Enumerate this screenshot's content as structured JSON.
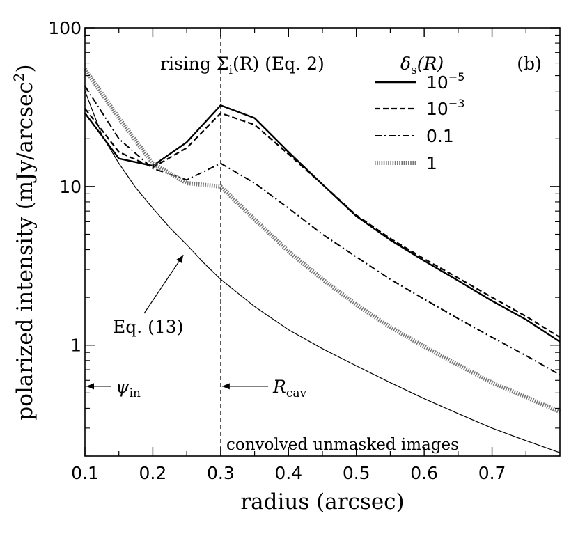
{
  "chart_data": {
    "type": "line",
    "panel_label": "(b)",
    "xlabel": "radius (arcsec)",
    "ylabel": "polarized intensity (mJy/arcsec",
    "ylabel_sup": "2",
    "ylabel_close": ")",
    "xlim": [
      0.1,
      0.8
    ],
    "ylim": [
      0.2,
      100
    ],
    "yscale": "log",
    "grid": false,
    "x_ticks": [
      0.1,
      0.2,
      0.3,
      0.4,
      0.5,
      0.6,
      0.7
    ],
    "x_tick_labels": [
      "0.1",
      "0.2",
      "0.3",
      "0.4",
      "0.5",
      "0.6",
      "0.7"
    ],
    "y_ticks": [
      1,
      10,
      100
    ],
    "y_tick_labels": [
      "1",
      "10",
      "100"
    ],
    "legend": {
      "placement": "top-right",
      "title_main": "δ",
      "title_sub": "s",
      "title_rest": "(R)"
    },
    "series": [
      {
        "name_base": "10",
        "name_exp": "−5",
        "style": "solid",
        "x": [
          0.1,
          0.15,
          0.2,
          0.25,
          0.3,
          0.35,
          0.4,
          0.45,
          0.5,
          0.55,
          0.6,
          0.65,
          0.7,
          0.75,
          0.8
        ],
        "y": [
          29,
          15,
          13.5,
          19,
          32.5,
          27,
          16.5,
          10.3,
          6.5,
          4.6,
          3.4,
          2.55,
          1.9,
          1.45,
          1.05
        ]
      },
      {
        "name_base": "10",
        "name_exp": "−3",
        "style": "dashed",
        "x": [
          0.1,
          0.15,
          0.2,
          0.25,
          0.3,
          0.35,
          0.4,
          0.45,
          0.5,
          0.55,
          0.6,
          0.65,
          0.7,
          0.75,
          0.8
        ],
        "y": [
          31,
          16.5,
          13.2,
          17.5,
          29,
          24.5,
          16,
          10.3,
          6.6,
          4.7,
          3.5,
          2.65,
          2.0,
          1.52,
          1.12
        ]
      },
      {
        "name_base": "0.1",
        "name_exp": "",
        "style": "dashdot",
        "x": [
          0.1,
          0.15,
          0.2,
          0.25,
          0.3,
          0.35,
          0.4,
          0.45,
          0.5,
          0.55,
          0.6,
          0.65,
          0.7,
          0.75,
          0.8
        ],
        "y": [
          43,
          20,
          13,
          11,
          14,
          10.5,
          7.3,
          5.0,
          3.6,
          2.6,
          1.95,
          1.47,
          1.12,
          0.86,
          0.65
        ]
      },
      {
        "name_base": "1",
        "name_exp": "",
        "style": "dotted-thick",
        "x": [
          0.1,
          0.15,
          0.2,
          0.25,
          0.3,
          0.35,
          0.4,
          0.45,
          0.5,
          0.55,
          0.6,
          0.65,
          0.7,
          0.75,
          0.8
        ],
        "y": [
          55,
          27,
          14,
          10.5,
          10,
          6.2,
          3.9,
          2.6,
          1.8,
          1.3,
          0.98,
          0.75,
          0.58,
          0.47,
          0.38
        ]
      },
      {
        "name_base": "",
        "name_exp": "",
        "style": "thin",
        "x": [
          0.1,
          0.125,
          0.15,
          0.175,
          0.2,
          0.225,
          0.25,
          0.275,
          0.3,
          0.35,
          0.4,
          0.45,
          0.5,
          0.55,
          0.6,
          0.65,
          0.7,
          0.75,
          0.8
        ],
        "y": [
          40,
          21,
          14,
          9.8,
          7.3,
          5.5,
          4.3,
          3.3,
          2.6,
          1.75,
          1.25,
          0.95,
          0.74,
          0.58,
          0.46,
          0.37,
          0.3,
          0.25,
          0.21
        ]
      }
    ],
    "annotations": {
      "vline_x": 0.3,
      "rising": {
        "pre": "rising Σ",
        "sub": "i",
        "post": "(R) (Eq. 2)"
      },
      "eq13": {
        "text": "Eq. (13)",
        "arrow_to_x": 0.245,
        "arrow_to_y": 3.7
      },
      "psi_in": {
        "main": "ψ",
        "sub": "in",
        "y": 0.55
      },
      "r_cav": {
        "main": "R",
        "sub": "cav",
        "y": 0.55
      },
      "bottom_text": "convolved unmasked images"
    }
  }
}
